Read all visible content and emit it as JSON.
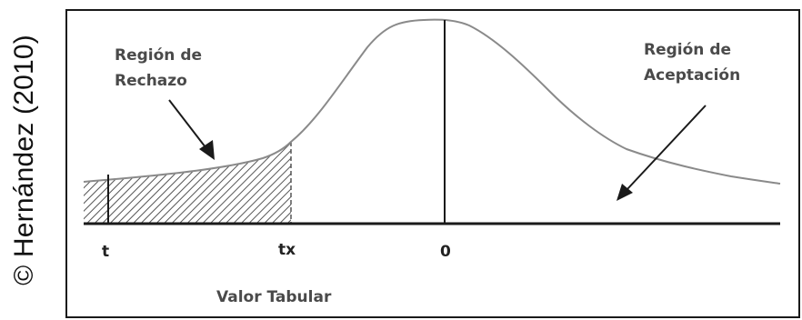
{
  "credit": "© Hernández (2010)",
  "labels": {
    "rejection_line1": "Región de",
    "rejection_line2": "Rechazo",
    "acceptance_line1": "Región de",
    "acceptance_line2": "Aceptación",
    "tick_t": "t",
    "tick_tx": "tx",
    "tick_zero": "0",
    "x_caption": "Valor Tabular"
  },
  "colors": {
    "curve": "#8a8a8a",
    "axis": "#1a1a1a",
    "hatch": "#555555",
    "text": "#4a4a4a"
  }
}
